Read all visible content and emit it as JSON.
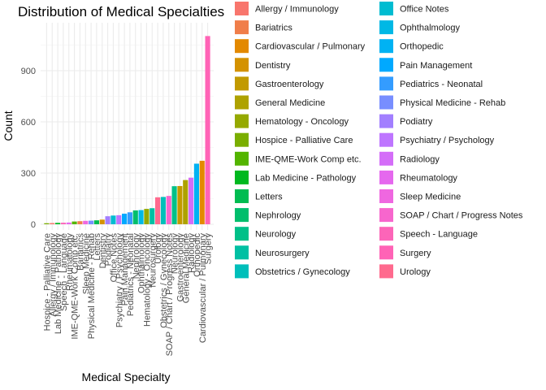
{
  "chart_data": {
    "type": "bar",
    "title": "Distribution of Medical Specialties",
    "xlabel": "Medical Specialty",
    "ylabel": "Count",
    "ylim": [
      0,
      1150
    ],
    "yticks": [
      0,
      300,
      600,
      900
    ],
    "grid": true,
    "legend_position": "right",
    "categories": [
      "Allergy / Immunology",
      "Bariatrics",
      "Cardiovascular / Pulmonary",
      "Dentistry",
      "Gastroenterology",
      "General Medicine",
      "Hematology - Oncology",
      "Hospice - Palliative Care",
      "IME-QME-Work Comp etc.",
      "Lab Medicine - Pathology",
      "Letters",
      "Nephrology",
      "Neurology",
      "Neurosurgery",
      "Obstetrics / Gynecology",
      "Office Notes",
      "Ophthalmology",
      "Orthopedic",
      "Pain Management",
      "Pediatrics - Neonatal",
      "Physical Medicine - Rehab",
      "Podiatry",
      "Psychiatry / Psychology",
      "Radiology",
      "Rheumatology",
      "Sleep Medicine",
      "SOAP / Chart / Progress Notes",
      "Speech - Language",
      "Surgery",
      "Urology"
    ],
    "colors": [
      "#F8766D",
      "#F07E4A",
      "#E38900",
      "#D49200",
      "#C29A00",
      "#AEA200",
      "#95A900",
      "#7AAE00",
      "#53B400",
      "#00B81F",
      "#00BC51",
      "#00BE6C",
      "#00C088",
      "#00C0A3",
      "#00BFBA",
      "#00BCD1",
      "#00B8E5",
      "#00B2F3",
      "#00A9FF",
      "#349CFF",
      "#788EFF",
      "#A27FFF",
      "#BE75FF",
      "#D46DF8",
      "#E568EE",
      "#EF67E0",
      "#F766CD",
      "#FC65B8",
      "#FF63B6",
      "#FF6A8E"
    ],
    "bars": [
      {
        "category": "Allergy / Immunology",
        "value": 7
      },
      {
        "category": "Bariatrics",
        "value": 18
      },
      {
        "category": "Cardiovascular / Pulmonary",
        "value": 372
      },
      {
        "category": "Dentistry",
        "value": 27
      },
      {
        "category": "Gastroenterology",
        "value": 224
      },
      {
        "category": "General Medicine",
        "value": 259
      },
      {
        "category": "Hematology - Oncology",
        "value": 90
      },
      {
        "category": "Hospice - Palliative Care",
        "value": 6
      },
      {
        "category": "IME-QME-Work Comp etc.",
        "value": 16
      },
      {
        "category": "Lab Medicine - Pathology",
        "value": 8
      },
      {
        "category": "Letters",
        "value": 23
      },
      {
        "category": "Nephrology",
        "value": 81
      },
      {
        "category": "Neurology",
        "value": 223
      },
      {
        "category": "Neurosurgery",
        "value": 94
      },
      {
        "category": "Obstetrics / Gynecology",
        "value": 160
      },
      {
        "category": "Office Notes",
        "value": 51
      },
      {
        "category": "Ophthalmology",
        "value": 83
      },
      {
        "category": "Orthopedic",
        "value": 355
      },
      {
        "category": "Pain Management",
        "value": 62
      },
      {
        "category": "Pediatrics - Neonatal",
        "value": 70
      },
      {
        "category": "Physical Medicine - Rehab",
        "value": 21
      },
      {
        "category": "Podiatry",
        "value": 47
      },
      {
        "category": "Psychiatry / Psychology",
        "value": 53
      },
      {
        "category": "Radiology",
        "value": 273
      },
      {
        "category": "Rheumatology",
        "value": 10
      },
      {
        "category": "Sleep Medicine",
        "value": 20
      },
      {
        "category": "SOAP / Chart / Progress Notes",
        "value": 166
      },
      {
        "category": "Speech - Language",
        "value": 9
      },
      {
        "category": "Surgery",
        "value": 1103
      },
      {
        "category": "Urology",
        "value": 158
      }
    ]
  }
}
